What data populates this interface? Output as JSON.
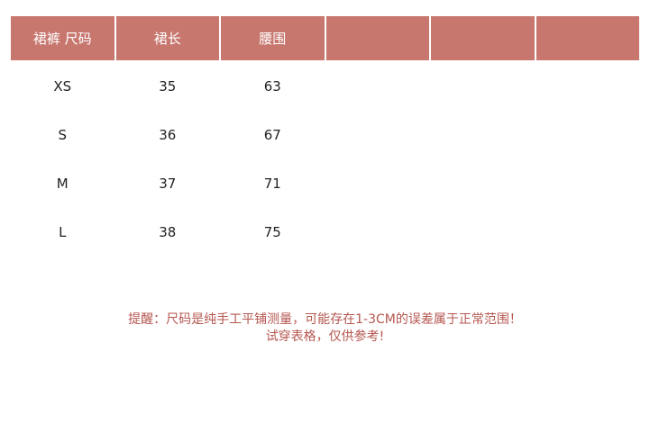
{
  "header_color": "#c8776f",
  "headers": [
    "裙裤 尺码",
    "裙长",
    "腰围",
    "",
    "",
    ""
  ],
  "rows": [
    [
      "XS",
      "35",
      "63",
      "",
      "",
      ""
    ],
    [
      "S",
      "36",
      "67",
      "",
      "",
      ""
    ],
    [
      "M",
      "37",
      "71",
      "",
      "",
      ""
    ],
    [
      "L",
      "38",
      "75",
      "",
      "",
      ""
    ]
  ],
  "note": {
    "line1": "提醒：尺码是纯手工平铺测量，可能存在1-3CM的误差属于正常范围！",
    "line2": "试穿表格，仅供参考!"
  }
}
